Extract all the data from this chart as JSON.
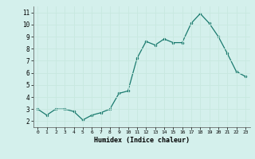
{
  "x": [
    0,
    1,
    2,
    3,
    4,
    5,
    6,
    7,
    8,
    9,
    10,
    11,
    12,
    13,
    14,
    15,
    16,
    17,
    18,
    19,
    20,
    21,
    22,
    23
  ],
  "y": [
    3.0,
    2.5,
    3.0,
    3.0,
    2.8,
    2.1,
    2.5,
    2.7,
    3.0,
    4.3,
    4.5,
    7.2,
    8.6,
    8.3,
    8.8,
    8.5,
    8.5,
    10.1,
    10.9,
    10.1,
    9.0,
    7.6,
    6.1,
    5.7
  ],
  "xlabel": "Humidex (Indice chaleur)",
  "ylim": [
    1.5,
    11.5
  ],
  "xlim": [
    -0.5,
    23.5
  ],
  "yticks": [
    2,
    3,
    4,
    5,
    6,
    7,
    8,
    9,
    10,
    11
  ],
  "xticks": [
    0,
    1,
    2,
    3,
    4,
    5,
    6,
    7,
    8,
    9,
    10,
    11,
    12,
    13,
    14,
    15,
    16,
    17,
    18,
    19,
    20,
    21,
    22,
    23
  ],
  "line_color": "#1a7a6e",
  "marker_color": "#1a7a6e",
  "bg_color": "#d4f0ec",
  "grid_color": "#c8e8e0",
  "title": ""
}
